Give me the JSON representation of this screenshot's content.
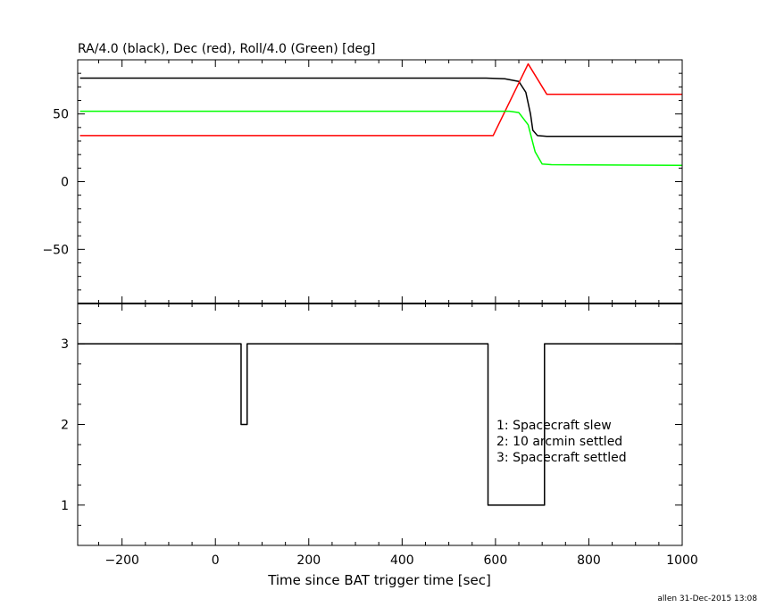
{
  "chart_data": [
    {
      "type": "line",
      "title": "RA/4.0 (black), Dec (red), Roll/4.0 (Green) [deg]",
      "xlabel": "",
      "ylabel": "",
      "xlim": [
        -295,
        1000
      ],
      "ylim": [
        -90,
        90
      ],
      "x_ticks": [
        -200,
        0,
        200,
        400,
        600,
        800,
        1000
      ],
      "y_ticks": [
        -50,
        0,
        50
      ],
      "y_tick_labels": [
        "−50",
        "0",
        "50"
      ],
      "series": [
        {
          "color": "#000000",
          "x": [
            -290,
            580,
            620,
            650,
            665,
            675,
            680,
            690,
            710,
            1000
          ],
          "y": [
            76.5,
            76.5,
            76,
            74,
            66,
            50,
            38,
            34,
            33.5,
            33.5
          ]
        },
        {
          "color": "#ff0000",
          "x": [
            -290,
            595,
            670,
            710,
            1000
          ],
          "y": [
            34,
            34,
            87,
            64.5,
            64.5
          ]
        },
        {
          "color": "#00ff00",
          "x": [
            -290,
            580,
            630,
            650,
            670,
            685,
            700,
            720,
            1000
          ],
          "y": [
            52,
            52,
            52,
            51,
            42,
            22,
            13,
            12.5,
            12
          ]
        }
      ]
    },
    {
      "type": "line",
      "title": "",
      "xlabel": "Time since BAT trigger time [sec]",
      "ylabel": "",
      "xlim": [
        -295,
        1000
      ],
      "ylim": [
        0.5,
        3.5
      ],
      "x_ticks": [
        -200,
        0,
        200,
        400,
        600,
        800,
        1000
      ],
      "x_tick_labels": [
        "−200",
        "0",
        "200",
        "400",
        "600",
        "800",
        "1000"
      ],
      "y_ticks": [
        1,
        2,
        3
      ],
      "y_tick_labels": [
        "1",
        "2",
        "3"
      ],
      "series": [
        {
          "color": "#000000",
          "step": true,
          "x": [
            -295,
            55,
            55,
            68,
            68,
            584,
            584,
            705,
            705,
            1000
          ],
          "y": [
            3,
            3,
            2,
            2,
            3,
            3,
            1,
            1,
            3,
            3
          ]
        }
      ],
      "annotations": [
        "1: Spacecraft slew",
        "2: 10 arcmin settled",
        "3: Spacecraft settled"
      ]
    }
  ],
  "footer": "allen 31-Dec-2015 13:08"
}
